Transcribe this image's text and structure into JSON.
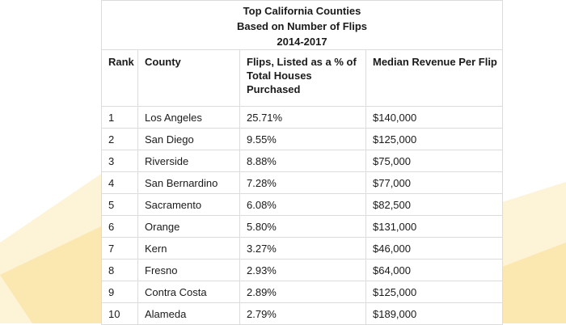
{
  "table": {
    "title_lines": [
      "Top California Counties",
      "Based on Number of Flips",
      "2014-2017"
    ],
    "headers": {
      "rank": "Rank",
      "county": "County",
      "flips": "Flips, Listed as a % of Total Houses Purchased",
      "revenue": "Median Revenue Per Flip"
    },
    "rows": [
      {
        "rank": "1",
        "county": "Los Angeles",
        "flips": "25.71%",
        "revenue": "$140,000"
      },
      {
        "rank": "2",
        "county": "San Diego",
        "flips": "9.55%",
        "revenue": "$125,000"
      },
      {
        "rank": "3",
        "county": "Riverside",
        "flips": "8.88%",
        "revenue": "$75,000"
      },
      {
        "rank": "4",
        "county": "San Bernardino",
        "flips": "7.28%",
        "revenue": "$77,000"
      },
      {
        "rank": "5",
        "county": "Sacramento",
        "flips": "6.08%",
        "revenue": "$82,500"
      },
      {
        "rank": "6",
        "county": "Orange",
        "flips": "5.80%",
        "revenue": "$131,000"
      },
      {
        "rank": "7",
        "county": "Kern",
        "flips": "3.27%",
        "revenue": "$46,000"
      },
      {
        "rank": "8",
        "county": "Fresno",
        "flips": "2.93%",
        "revenue": "$64,000"
      },
      {
        "rank": "9",
        "county": "Contra Costa",
        "flips": "2.89%",
        "revenue": "$125,000"
      },
      {
        "rank": "10",
        "county": "Alameda",
        "flips": "2.79%",
        "revenue": "$189,000"
      }
    ]
  },
  "colors": {
    "border": "#dcdcdc",
    "decor_yellow": "#fbe7b0",
    "decor_light": "#fdf3d6"
  }
}
